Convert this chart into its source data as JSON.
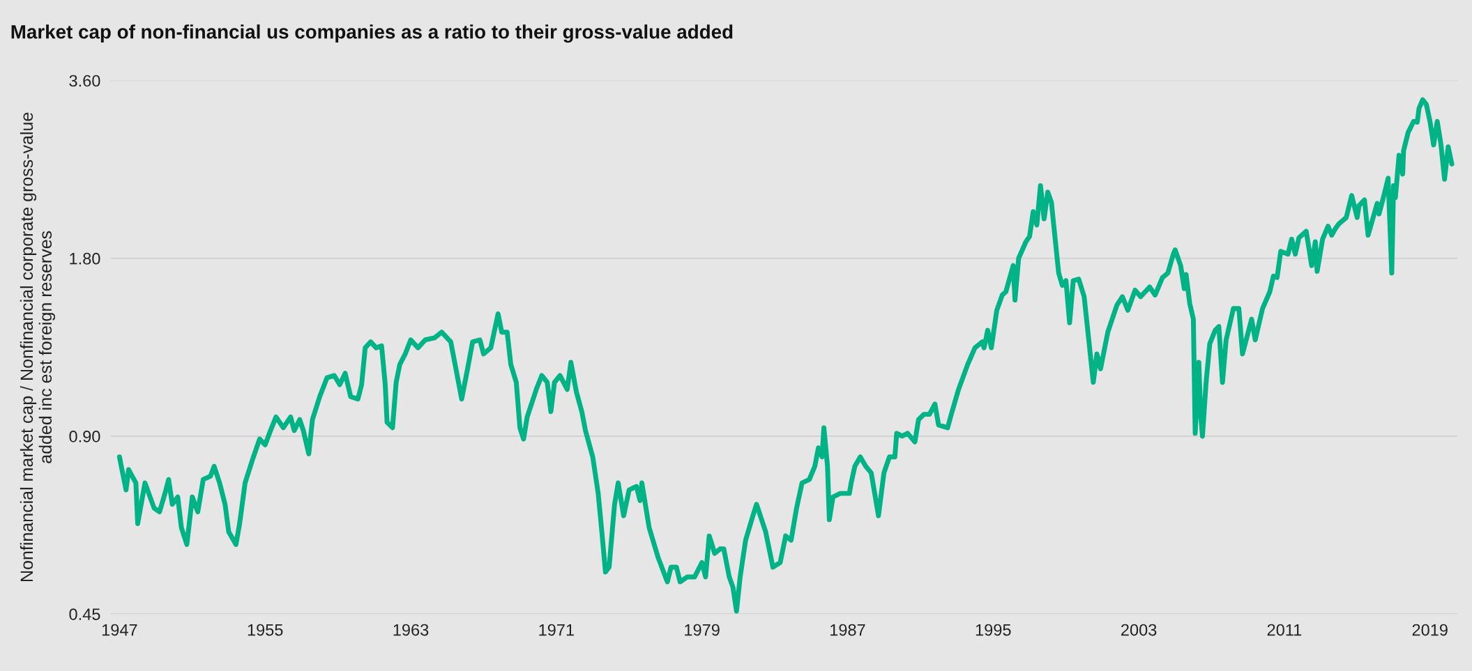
{
  "chart_data": {
    "type": "line",
    "title": "Market cap of non-financial us companies as a ratio to their gross-value added",
    "ylabel": "Nonfinancial market cap / Nonfinancial corporate gross-value\nadded inc est foreign reserves",
    "log": true,
    "grid": "y",
    "marker": "none",
    "line_style": "solid",
    "xlim": [
      1946.5,
      2020.5
    ],
    "xticks": [
      1947,
      1955,
      1963,
      1971,
      1979,
      1987,
      1995,
      2003,
      2011,
      2019
    ],
    "ylim": [
      0.45,
      3.6
    ],
    "yticks": [
      {
        "value": 0.45,
        "label": "0.45"
      },
      {
        "value": 0.9,
        "label": "0.90"
      },
      {
        "value": 1.8,
        "label": "1.80"
      },
      {
        "value": 3.6,
        "label": "3.60"
      }
    ],
    "series": [
      {
        "color": "#00b386",
        "x": [
          1947.0,
          1947.1,
          1947.36,
          1947.5,
          1947.9,
          1948.0,
          1948.4,
          1948.9,
          1949.2,
          1949.5,
          1949.7,
          1949.9,
          1950.2,
          1950.4,
          1950.7,
          1951.0,
          1951.3,
          1951.6,
          1952.0,
          1952.2,
          1952.5,
          1952.8,
          1953.0,
          1953.4,
          1953.6,
          1953.9,
          1954.3,
          1954.7,
          1955.0,
          1955.3,
          1955.6,
          1956.0,
          1956.4,
          1956.6,
          1956.9,
          1957.1,
          1957.4,
          1957.6,
          1958.0,
          1958.4,
          1958.8,
          1959.1,
          1959.4,
          1959.7,
          1960.1,
          1960.3,
          1960.5,
          1960.8,
          1961.1,
          1961.4,
          1961.6,
          1961.7,
          1962.0,
          1962.2,
          1962.4,
          1962.7,
          1963.0,
          1963.4,
          1963.8,
          1964.3,
          1964.7,
          1965.2,
          1965.8,
          1966.1,
          1966.4,
          1966.8,
          1967.0,
          1967.4,
          1967.8,
          1968.0,
          1968.3,
          1968.5,
          1968.8,
          1969.0,
          1969.2,
          1969.4,
          1969.9,
          1970.2,
          1970.5,
          1970.7,
          1970.9,
          1971.2,
          1971.6,
          1971.8,
          1972.1,
          1972.4,
          1972.6,
          1973.0,
          1973.3,
          1973.5,
          1973.7,
          1973.9,
          1974.2,
          1974.4,
          1974.7,
          1975.0,
          1975.4,
          1975.6,
          1975.7,
          1976.1,
          1976.6,
          1977.1,
          1977.3,
          1977.6,
          1977.8,
          1978.2,
          1978.6,
          1979.0,
          1979.2,
          1979.4,
          1979.7,
          1980.0,
          1980.2,
          1980.5,
          1980.7,
          1980.9,
          1981.1,
          1981.4,
          1981.8,
          1982.0,
          1982.5,
          1982.9,
          1983.3,
          1983.6,
          1983.9,
          1984.2,
          1984.5,
          1984.9,
          1985.2,
          1985.4,
          1985.6,
          1985.7,
          1985.9,
          1986.0,
          1986.2,
          1986.6,
          1987.1,
          1987.2,
          1987.4,
          1987.7,
          1988.0,
          1988.3,
          1988.7,
          1989.0,
          1989.3,
          1989.6,
          1989.7,
          1990.0,
          1990.3,
          1990.7,
          1990.9,
          1991.2,
          1991.5,
          1991.8,
          1992.0,
          1992.5,
          1992.7,
          1993.1,
          1993.6,
          1994.0,
          1994.4,
          1994.5,
          1994.7,
          1994.9,
          1995.2,
          1995.5,
          1995.7,
          1996.1,
          1996.2,
          1996.4,
          1996.8,
          1997.0,
          1997.2,
          1997.4,
          1997.6,
          1997.8,
          1998.0,
          1998.2,
          1998.5,
          1998.6,
          1998.8,
          1999.0,
          1999.2,
          1999.4,
          1999.7,
          2000.0,
          2000.3,
          2000.5,
          2000.7,
          2000.9,
          2001.3,
          2001.8,
          2002.1,
          2002.4,
          2002.8,
          2003.1,
          2003.6,
          2003.9,
          2004.3,
          2004.6,
          2004.9,
          2005.0,
          2005.3,
          2005.5,
          2005.6,
          2005.8,
          2006.0,
          2006.1,
          2006.3,
          2006.4,
          2006.5,
          2006.7,
          2006.9,
          2007.2,
          2007.4,
          2007.6,
          2007.8,
          2008.2,
          2008.5,
          2008.7,
          2009.2,
          2009.4,
          2009.8,
          2010.2,
          2010.4,
          2010.6,
          2010.8,
          2011.2,
          2011.4,
          2011.6,
          2011.8,
          2012.2,
          2012.5,
          2012.7,
          2012.8,
          2013.1,
          2013.4,
          2013.6,
          2013.8,
          2014.0,
          2014.4,
          2014.7,
          2015.0,
          2015.1,
          2015.4,
          2015.6,
          2015.8,
          2016.1,
          2016.2,
          2016.5,
          2016.7,
          2016.9,
          2017.0,
          2017.1,
          2017.3,
          2017.5,
          2017.55,
          2017.8,
          2018.1,
          2018.3,
          2018.4,
          2018.6,
          2018.8,
          2019.0,
          2019.2,
          2019.4,
          2019.6,
          2019.8,
          2020.0,
          2020.2
        ],
        "values": [
          0.83,
          0.8,
          0.73,
          0.79,
          0.75,
          0.64,
          0.75,
          0.68,
          0.67,
          0.72,
          0.76,
          0.69,
          0.71,
          0.63,
          0.59,
          0.71,
          0.67,
          0.76,
          0.77,
          0.8,
          0.75,
          0.69,
          0.62,
          0.59,
          0.64,
          0.75,
          0.82,
          0.89,
          0.87,
          0.92,
          0.97,
          0.93,
          0.97,
          0.92,
          0.96,
          0.92,
          0.84,
          0.96,
          1.05,
          1.13,
          1.14,
          1.1,
          1.15,
          1.05,
          1.04,
          1.1,
          1.27,
          1.3,
          1.27,
          1.28,
          1.1,
          0.95,
          0.93,
          1.11,
          1.19,
          1.24,
          1.31,
          1.27,
          1.31,
          1.32,
          1.35,
          1.3,
          1.04,
          1.16,
          1.3,
          1.31,
          1.24,
          1.27,
          1.45,
          1.35,
          1.35,
          1.19,
          1.11,
          0.93,
          0.89,
          0.97,
          1.08,
          1.14,
          1.11,
          0.99,
          1.11,
          1.14,
          1.08,
          1.2,
          1.07,
          0.99,
          0.92,
          0.83,
          0.72,
          0.62,
          0.53,
          0.54,
          0.69,
          0.75,
          0.66,
          0.73,
          0.74,
          0.7,
          0.75,
          0.63,
          0.56,
          0.51,
          0.54,
          0.54,
          0.51,
          0.52,
          0.52,
          0.55,
          0.52,
          0.61,
          0.57,
          0.58,
          0.58,
          0.52,
          0.5,
          0.455,
          0.52,
          0.6,
          0.66,
          0.69,
          0.62,
          0.54,
          0.55,
          0.61,
          0.6,
          0.68,
          0.75,
          0.76,
          0.8,
          0.86,
          0.83,
          0.93,
          0.8,
          0.65,
          0.71,
          0.72,
          0.72,
          0.75,
          0.8,
          0.83,
          0.8,
          0.78,
          0.66,
          0.78,
          0.83,
          0.83,
          0.91,
          0.9,
          0.91,
          0.88,
          0.96,
          0.98,
          0.98,
          1.02,
          0.94,
          0.93,
          0.98,
          1.08,
          1.19,
          1.27,
          1.3,
          1.27,
          1.36,
          1.27,
          1.47,
          1.56,
          1.58,
          1.75,
          1.53,
          1.8,
          1.92,
          1.96,
          2.16,
          2.05,
          2.39,
          2.1,
          2.33,
          2.24,
          1.82,
          1.7,
          1.62,
          1.65,
          1.4,
          1.65,
          1.66,
          1.55,
          1.27,
          1.11,
          1.24,
          1.17,
          1.35,
          1.5,
          1.55,
          1.47,
          1.59,
          1.55,
          1.61,
          1.56,
          1.67,
          1.7,
          1.83,
          1.86,
          1.75,
          1.6,
          1.69,
          1.51,
          1.42,
          0.91,
          1.2,
          0.98,
          0.9,
          1.11,
          1.29,
          1.36,
          1.38,
          1.11,
          1.31,
          1.48,
          1.48,
          1.24,
          1.42,
          1.31,
          1.48,
          1.58,
          1.68,
          1.67,
          1.85,
          1.83,
          1.94,
          1.83,
          1.95,
          2.0,
          1.75,
          1.92,
          1.71,
          1.94,
          2.04,
          1.97,
          2.02,
          2.06,
          2.11,
          2.3,
          2.11,
          2.21,
          2.26,
          1.97,
          2.07,
          2.23,
          2.14,
          2.32,
          2.46,
          1.7,
          2.39,
          2.28,
          2.69,
          2.5,
          2.74,
          2.94,
          3.07,
          3.06,
          3.23,
          3.34,
          3.28,
          3.07,
          2.8,
          3.07,
          2.81,
          2.45,
          2.78,
          2.6
        ]
      }
    ]
  }
}
